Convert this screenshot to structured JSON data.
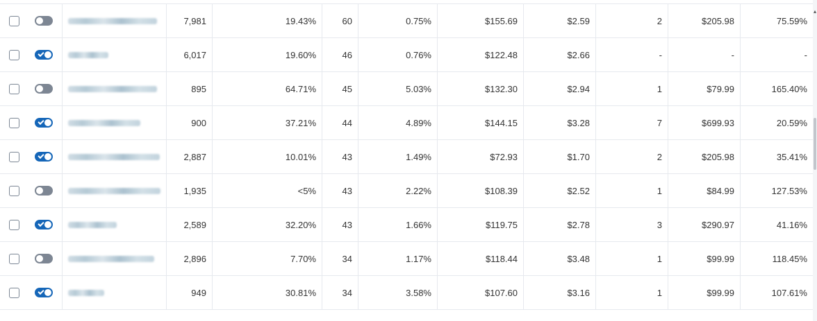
{
  "rows": [
    {
      "toggle": "off",
      "name_width": 128,
      "c1": "7,981",
      "c2": "19.43%",
      "c3": "60",
      "c4": "0.75%",
      "c5": "$155.69",
      "c6": "$2.59",
      "c7": "2",
      "c8": "$205.98",
      "c9": "75.59%"
    },
    {
      "toggle": "on",
      "name_width": 58,
      "c1": "6,017",
      "c2": "19.60%",
      "c3": "46",
      "c4": "0.76%",
      "c5": "$122.48",
      "c6": "$2.66",
      "c7": "-",
      "c8": "-",
      "c9": "-"
    },
    {
      "toggle": "off",
      "name_width": 128,
      "c1": "895",
      "c2": "64.71%",
      "c3": "45",
      "c4": "5.03%",
      "c5": "$132.30",
      "c6": "$2.94",
      "c7": "1",
      "c8": "$79.99",
      "c9": "165.40%"
    },
    {
      "toggle": "on",
      "name_width": 104,
      "c1": "900",
      "c2": "37.21%",
      "c3": "44",
      "c4": "4.89%",
      "c5": "$144.15",
      "c6": "$3.28",
      "c7": "7",
      "c8": "$699.93",
      "c9": "20.59%"
    },
    {
      "toggle": "on",
      "name_width": 132,
      "c1": "2,887",
      "c2": "10.01%",
      "c3": "43",
      "c4": "1.49%",
      "c5": "$72.93",
      "c6": "$1.70",
      "c7": "2",
      "c8": "$205.98",
      "c9": "35.41%"
    },
    {
      "toggle": "off",
      "name_width": 140,
      "c1": "1,935",
      "c2": "<5%",
      "c3": "43",
      "c4": "2.22%",
      "c5": "$108.39",
      "c6": "$2.52",
      "c7": "1",
      "c8": "$84.99",
      "c9": "127.53%"
    },
    {
      "toggle": "on",
      "name_width": 70,
      "c1": "2,589",
      "c2": "32.20%",
      "c3": "43",
      "c4": "1.66%",
      "c5": "$119.75",
      "c6": "$2.78",
      "c7": "3",
      "c8": "$290.97",
      "c9": "41.16%"
    },
    {
      "toggle": "off",
      "name_width": 124,
      "c1": "2,896",
      "c2": "7.70%",
      "c3": "34",
      "c4": "1.17%",
      "c5": "$118.44",
      "c6": "$3.48",
      "c7": "1",
      "c8": "$99.99",
      "c9": "118.45%"
    },
    {
      "toggle": "on",
      "name_width": 52,
      "c1": "949",
      "c2": "30.81%",
      "c3": "34",
      "c4": "3.58%",
      "c5": "$107.60",
      "c6": "$3.16",
      "c7": "1",
      "c8": "$99.99",
      "c9": "107.61%"
    }
  ],
  "colors": {
    "toggle_on": "#1566b8",
    "toggle_off": "#7d8693",
    "grid": "#e6e9ee"
  }
}
